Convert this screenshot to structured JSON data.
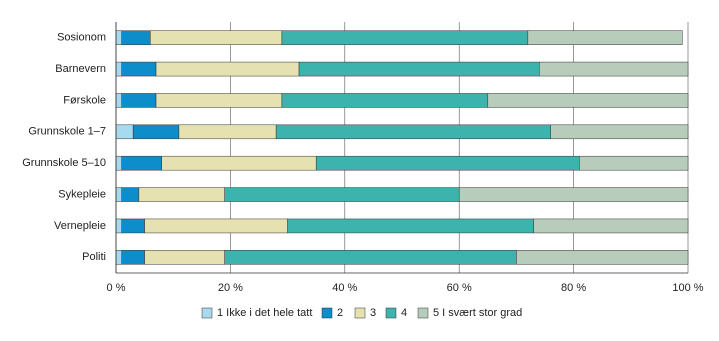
{
  "chart_data": {
    "type": "stacked-bar-horizontal",
    "categories": [
      "Sosionom",
      "Barnevern",
      "Førskole",
      "Grunnskole 1–7",
      "Grunnskole 5–10",
      "Sykepleie",
      "Vernepleie",
      "Politi"
    ],
    "series": [
      {
        "name": "1 Ikke i det hele tatt",
        "color": "#a9d9ef",
        "values": [
          1,
          1,
          1,
          3,
          1,
          1,
          1,
          1
        ]
      },
      {
        "name": "2",
        "color": "#0d8dc9",
        "values": [
          5,
          6,
          6,
          8,
          7,
          3,
          4,
          4
        ]
      },
      {
        "name": "3",
        "color": "#e5e1b0",
        "values": [
          23,
          25,
          22,
          17,
          27,
          15,
          25,
          14
        ]
      },
      {
        "name": "4",
        "color": "#3db3ad",
        "values": [
          43,
          42,
          36,
          48,
          46,
          41,
          43,
          51
        ]
      },
      {
        "name": "5 I svært stor grad",
        "color": "#b7ccba",
        "values": [
          27,
          26,
          35,
          24,
          19,
          40,
          27,
          30
        ]
      }
    ],
    "xlim": [
      0,
      100
    ],
    "xticks": [
      {
        "value": 0,
        "label": "0 %"
      },
      {
        "value": 20,
        "label": "20 %"
      },
      {
        "value": 40,
        "label": "40 %"
      },
      {
        "value": 60,
        "label": "60 %"
      },
      {
        "value": 80,
        "label": "80 %"
      },
      {
        "value": 100,
        "label": "100 %"
      }
    ],
    "grid": true
  }
}
